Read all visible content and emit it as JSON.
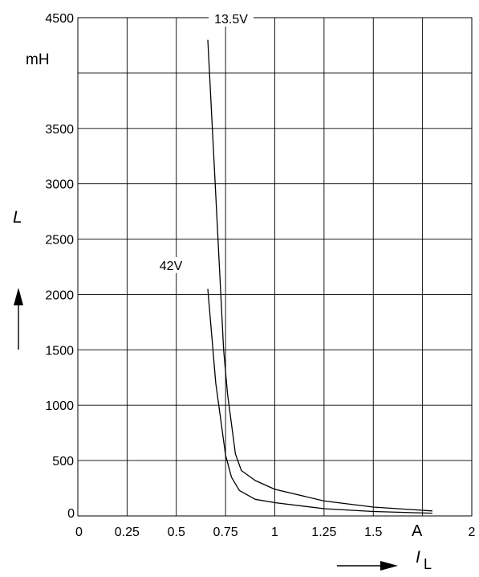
{
  "chart_data": {
    "type": "line",
    "x_unit": "A",
    "y_unit": "mH",
    "ylabel": "L",
    "xlabel": "I",
    "xlabel_sub": "L",
    "xlim": [
      0,
      2
    ],
    "ylim": [
      0,
      4500
    ],
    "x_ticks": [
      "0",
      "0.25",
      "0.5",
      "0.75",
      "1",
      "1.25",
      "1.5",
      "2"
    ],
    "y_ticks": [
      "0",
      "500",
      "1000",
      "1500",
      "2000",
      "2500",
      "3000",
      "3500",
      "4500"
    ],
    "grid": true,
    "series": [
      {
        "name": "13.5V",
        "x": [
          0.66,
          0.7,
          0.74,
          0.76,
          0.8,
          0.83,
          0.9,
          1.0,
          1.25,
          1.5,
          1.8
        ],
        "y": [
          4300,
          2900,
          1500,
          1100,
          560,
          410,
          320,
          240,
          135,
          80,
          45
        ]
      },
      {
        "name": "42V",
        "x": [
          0.66,
          0.7,
          0.75,
          0.78,
          0.82,
          0.9,
          1.0,
          1.25,
          1.5,
          1.8
        ],
        "y": [
          2050,
          1200,
          550,
          350,
          230,
          150,
          120,
          65,
          40,
          25
        ]
      }
    ]
  }
}
